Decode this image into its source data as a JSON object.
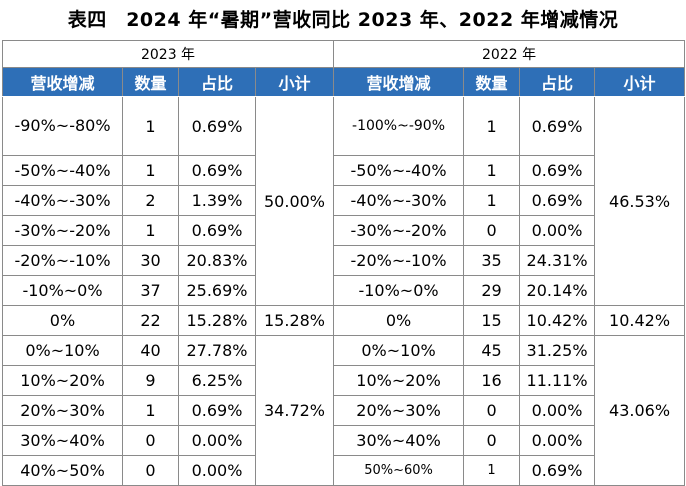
{
  "title": "表四　2024 年“暑期”营收同比 2023 年、2022 年增减情况",
  "year_2023": "2023 年",
  "year_2022": "2022 年",
  "headers": {
    "range": "营收增减",
    "count": "数量",
    "share": "占比",
    "subtotal": "小计"
  },
  "rows_2023": [
    {
      "range": "-90%~-80%",
      "count": "1",
      "share": "0.69%"
    },
    {
      "range": "-50%~-40%",
      "count": "1",
      "share": "0.69%"
    },
    {
      "range": "-40%~-30%",
      "count": "2",
      "share": "1.39%"
    },
    {
      "range": "-30%~-20%",
      "count": "1",
      "share": "0.69%"
    },
    {
      "range": "-20%~-10%",
      "count": "30",
      "share": "20.83%"
    },
    {
      "range": "-10%~0%",
      "count": "37",
      "share": "25.69%"
    },
    {
      "range": "0%",
      "count": "22",
      "share": "15.28%"
    },
    {
      "range": "0%~10%",
      "count": "40",
      "share": "27.78%"
    },
    {
      "range": "10%~20%",
      "count": "9",
      "share": "6.25%"
    },
    {
      "range": "20%~30%",
      "count": "1",
      "share": "0.69%"
    },
    {
      "range": "30%~40%",
      "count": "0",
      "share": "0.00%"
    },
    {
      "range": "40%~50%",
      "count": "0",
      "share": "0.00%"
    }
  ],
  "rows_2022": [
    {
      "range": "-100%~-90%",
      "count": "1",
      "share": "0.69%"
    },
    {
      "range": "-50%~-40%",
      "count": "1",
      "share": "0.69%"
    },
    {
      "range": "-40%~-30%",
      "count": "1",
      "share": "0.69%"
    },
    {
      "range": "-30%~-20%",
      "count": "0",
      "share": "0.00%"
    },
    {
      "range": "-20%~-10%",
      "count": "35",
      "share": "24.31%"
    },
    {
      "range": "-10%~0%",
      "count": "29",
      "share": "20.14%"
    },
    {
      "range": "0%",
      "count": "15",
      "share": "10.42%"
    },
    {
      "range": "0%~10%",
      "count": "45",
      "share": "31.25%"
    },
    {
      "range": "10%~20%",
      "count": "16",
      "share": "11.11%"
    },
    {
      "range": "20%~30%",
      "count": "0",
      "share": "0.00%"
    },
    {
      "range": "30%~40%",
      "count": "0",
      "share": "0.00%"
    },
    {
      "range": "50%~60%",
      "count": "1",
      "share": "0.69%"
    }
  ],
  "subtotals_2023": {
    "negative": "50.00%",
    "zero": "15.28%",
    "positive": "34.72%"
  },
  "subtotals_2022": {
    "negative": "46.53%",
    "zero": "10.42%",
    "positive": "43.06%"
  },
  "header_color": "#2e6fb7"
}
